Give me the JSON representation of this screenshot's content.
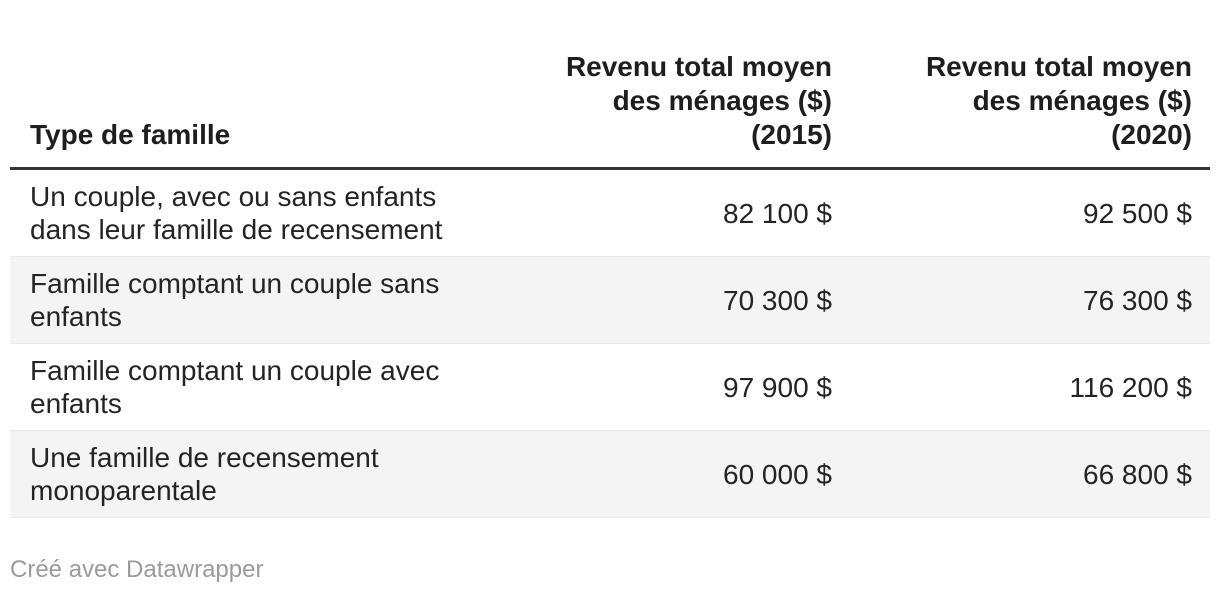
{
  "table": {
    "columns": [
      {
        "label": "Type de famille",
        "align": "left"
      },
      {
        "label": "Revenu total moyen\ndes ménages ($)\n(2015)",
        "align": "right"
      },
      {
        "label": "Revenu total moyen\ndes ménages ($)\n(2020)",
        "align": "right"
      }
    ],
    "rows": [
      {
        "label": "Un couple, avec ou sans enfants\ndans leur famille de recensement",
        "v2015": "82 100 $",
        "v2020": "92 500 $"
      },
      {
        "label": "Famille comptant un couple sans\nenfants",
        "v2015": "70 300 $",
        "v2020": "76 300 $"
      },
      {
        "label": "Famille comptant un couple avec\nenfants",
        "v2015": "97 900 $",
        "v2020": "116 200 $"
      },
      {
        "label": "Une famille de recensement\nmonoparentale",
        "v2015": "60 000 $",
        "v2020": "66 800 $"
      }
    ]
  },
  "footer": {
    "credit": "Créé avec Datawrapper"
  },
  "colors": {
    "text": "#242424",
    "header_text": "#1e1e1e",
    "header_border": "#333333",
    "stripe": "#f4f4f4",
    "row_divider": "#e9e9e9",
    "credit": "#9b9b9b",
    "background": "#ffffff"
  },
  "chart_data": {
    "type": "table",
    "columns": [
      "Type de famille",
      "Revenu total moyen des ménages ($) (2015)",
      "Revenu total moyen des ménages ($) (2020)"
    ],
    "rows": [
      [
        "Un couple, avec ou sans enfants dans leur famille de recensement",
        82100,
        92500
      ],
      [
        "Famille comptant un couple sans enfants",
        70300,
        76300
      ],
      [
        "Famille comptant un couple avec enfants",
        97900,
        116200
      ],
      [
        "Une famille de recensement monoparentale",
        60000,
        66800
      ]
    ],
    "unit": "$",
    "number_format": "fr thousands separated by space, '$' suffix",
    "layout_hints": {
      "striped_rows": true,
      "numeric_columns_right_aligned": true,
      "header_bottom_border": true
    }
  }
}
